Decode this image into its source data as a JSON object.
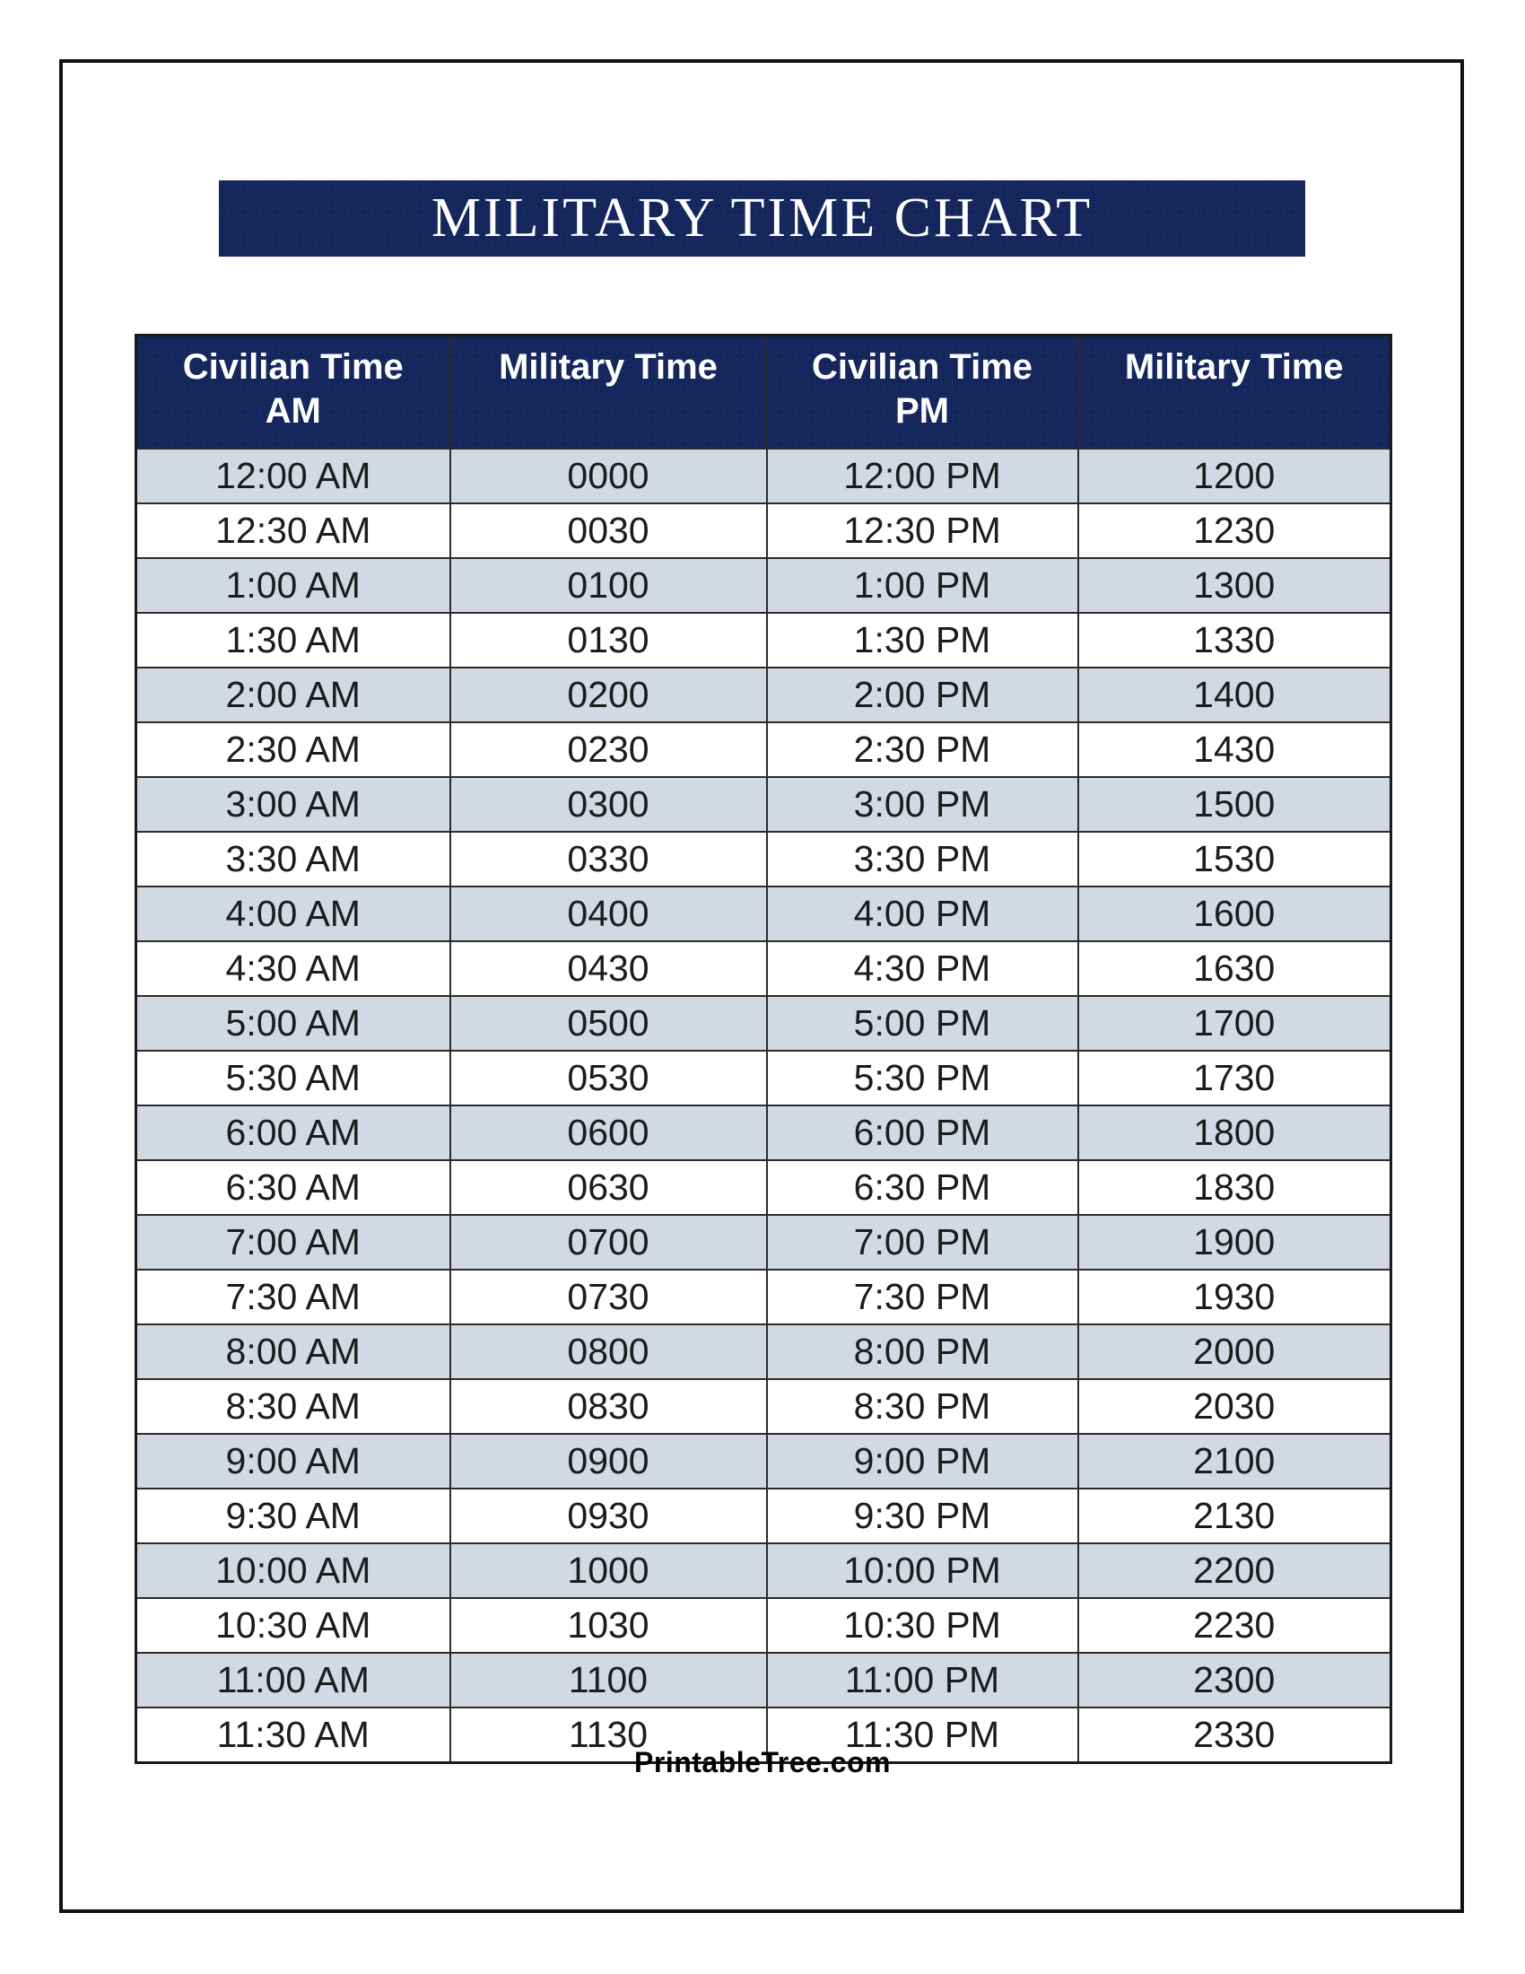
{
  "banner": {
    "title": "MILITARY TIME CHART",
    "bg_color": "#14265C",
    "text_color": "#FFFFFF"
  },
  "table": {
    "headers": [
      {
        "line1": "Civilian Time",
        "line2": "AM"
      },
      {
        "line1": "Military Time",
        "line2": ""
      },
      {
        "line1": "Civilian Time",
        "line2": "PM"
      },
      {
        "line1": "Military Time",
        "line2": ""
      }
    ],
    "rows": [
      [
        "12:00 AM",
        "0000",
        "12:00 PM",
        "1200"
      ],
      [
        "12:30 AM",
        "0030",
        "12:30 PM",
        "1230"
      ],
      [
        "1:00 AM",
        "0100",
        "1:00 PM",
        "1300"
      ],
      [
        "1:30 AM",
        "0130",
        "1:30 PM",
        "1330"
      ],
      [
        "2:00 AM",
        "0200",
        "2:00 PM",
        "1400"
      ],
      [
        "2:30 AM",
        "0230",
        "2:30 PM",
        "1430"
      ],
      [
        "3:00 AM",
        "0300",
        "3:00 PM",
        "1500"
      ],
      [
        "3:30 AM",
        "0330",
        "3:30 PM",
        "1530"
      ],
      [
        "4:00 AM",
        "0400",
        "4:00 PM",
        "1600"
      ],
      [
        "4:30 AM",
        "0430",
        "4:30 PM",
        "1630"
      ],
      [
        "5:00 AM",
        "0500",
        "5:00 PM",
        "1700"
      ],
      [
        "5:30 AM",
        "0530",
        "5:30 PM",
        "1730"
      ],
      [
        "6:00 AM",
        "0600",
        "6:00 PM",
        "1800"
      ],
      [
        "6:30 AM",
        "0630",
        "6:30 PM",
        "1830"
      ],
      [
        "7:00 AM",
        "0700",
        "7:00 PM",
        "1900"
      ],
      [
        "7:30 AM",
        "0730",
        "7:30 PM",
        "1930"
      ],
      [
        "8:00 AM",
        "0800",
        "8:00 PM",
        "2000"
      ],
      [
        "8:30 AM",
        "0830",
        "8:30 PM",
        "2030"
      ],
      [
        "9:00 AM",
        "0900",
        "9:00 PM",
        "2100"
      ],
      [
        "9:30 AM",
        "0930",
        "9:30 PM",
        "2130"
      ],
      [
        "10:00 AM",
        "1000",
        "10:00 PM",
        "2200"
      ],
      [
        "10:30 AM",
        "1030",
        "10:30 PM",
        "2230"
      ],
      [
        "11:00 AM",
        "1100",
        "11:00 PM",
        "2300"
      ],
      [
        "11:30 AM",
        "1130",
        "11:30 PM",
        "2330"
      ]
    ]
  },
  "footer": {
    "text": "PrintableTree.com"
  },
  "colors": {
    "navy": "#14265C",
    "alt_row": "#D3D9E2",
    "white_row": "#FFFFFF",
    "border": "#2B2B2B",
    "text": "#1C1C1C",
    "page_border": "#111111"
  }
}
